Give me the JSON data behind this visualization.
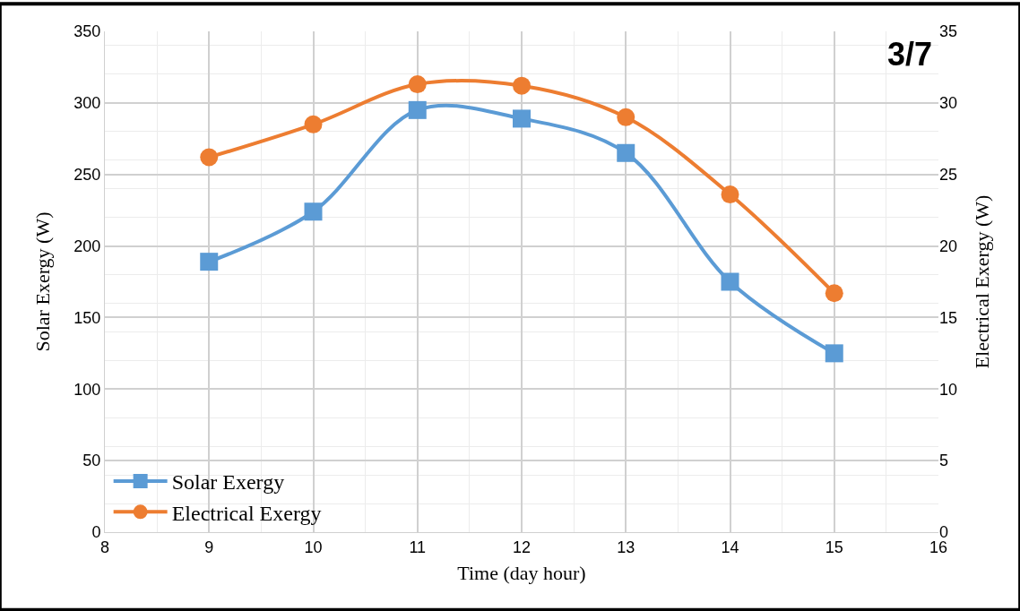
{
  "chart_data": {
    "type": "line",
    "xlabel": "Time (day hour)",
    "ylabel": "Solar Exergy (W)",
    "y2label": "Electrical Exergy (W)",
    "x": [
      9,
      10,
      11,
      12,
      13,
      14,
      15
    ],
    "series": [
      {
        "name": "Solar Exergy",
        "color": "#5b9bd5",
        "values": [
          189,
          224,
          295,
          289,
          265,
          175,
          125
        ],
        "marker": "square"
      },
      {
        "name": "Electrical Exergy",
        "color": "#ed7d31",
        "values": [
          26.2,
          28.5,
          31.3,
          31.2,
          29.0,
          23.6,
          16.7
        ],
        "marker": "circle",
        "axis": "y2"
      }
    ],
    "xlim": [
      8,
      16
    ],
    "xticks": [
      8,
      9,
      10,
      11,
      12,
      13,
      14,
      15,
      16
    ],
    "ylim": [
      0,
      350
    ],
    "yticks": [
      0,
      50,
      100,
      150,
      200,
      250,
      300,
      350
    ],
    "y2lim": [
      0,
      35
    ],
    "y2ticks": [
      0,
      5,
      10,
      15,
      20,
      25,
      30,
      35
    ],
    "annotations": [
      "3/7"
    ],
    "grid": true,
    "legend": "bottom left",
    "line_style": "solid"
  }
}
